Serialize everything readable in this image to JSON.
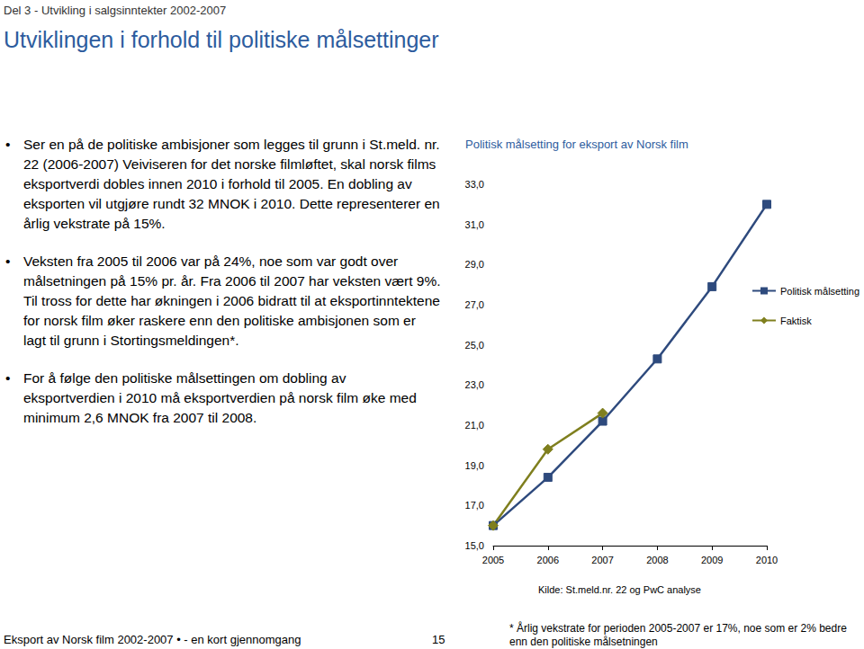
{
  "header": "Del 3 - Utvikling i salgsinntekter 2002-2007",
  "title": "Utviklingen i forhold til politiske målsettinger",
  "bullets": [
    "Ser en på de politiske ambisjoner som legges til grunn i St.meld. nr. 22 (2006-2007) Veiviseren for det norske filmløftet, skal norsk films eksportverdi dobles innen 2010 i forhold til 2005. En dobling av eksporten vil utgjøre rundt 32 MNOK i 2010. Dette representerer en årlig vekstrate på 15%.",
    "Veksten fra 2005 til 2006 var på 24%, noe som var godt over målsetningen på 15% pr. år. Fra 2006 til 2007 har veksten vært 9%. Til tross for dette har økningen i 2006 bidratt til at eksportinntektene for norsk film øker raskere enn den politiske ambisjonen som er lagt til grunn i Stortingsmeldingen*.",
    "For å følge den politiske målsettingen om dobling av eksportverdien i 2010 må eksportverdien på norsk film øke med minimum 2,6 MNOK fra 2007 til 2008."
  ],
  "source": "Kilde: St.meld.nr. 22 og PwC analyse",
  "footer": {
    "left": "Eksport av Norsk film 2002-2007 • - en kort gjennomgang",
    "page": "15",
    "note": "* Årlig vekstrate for perioden 2005-2007 er 17%, noe som er 2% bedre enn den politiske målsetningen"
  },
  "chart_data": {
    "type": "line",
    "title": "Politisk målsetting for eksport av Norsk film",
    "categories": [
      "2005",
      "2006",
      "2007",
      "2008",
      "2009",
      "2010"
    ],
    "series": [
      {
        "name": "Politisk målsetting",
        "color": "#2e4a7d",
        "marker": "square",
        "values": [
          16.0,
          18.4,
          21.2,
          24.3,
          27.9,
          32.0
        ]
      },
      {
        "name": "Faktisk",
        "color": "#7f7f1e",
        "marker": "diamond",
        "values": [
          16.0,
          19.8,
          21.6,
          null,
          null,
          null
        ]
      }
    ],
    "ylim": [
      15,
      33
    ],
    "yticks": [
      {
        "value": 15,
        "label": "15,0"
      },
      {
        "value": 17,
        "label": "17,0"
      },
      {
        "value": 19,
        "label": "19,0"
      },
      {
        "value": 21,
        "label": "21,0"
      },
      {
        "value": 23,
        "label": "23,0"
      },
      {
        "value": 25,
        "label": "25,0"
      },
      {
        "value": 27,
        "label": "27,0"
      },
      {
        "value": 29,
        "label": "29,0"
      },
      {
        "value": 31,
        "label": "31,0"
      },
      {
        "value": 33,
        "label": "33,0"
      }
    ],
    "grid": false,
    "legend": "right"
  }
}
